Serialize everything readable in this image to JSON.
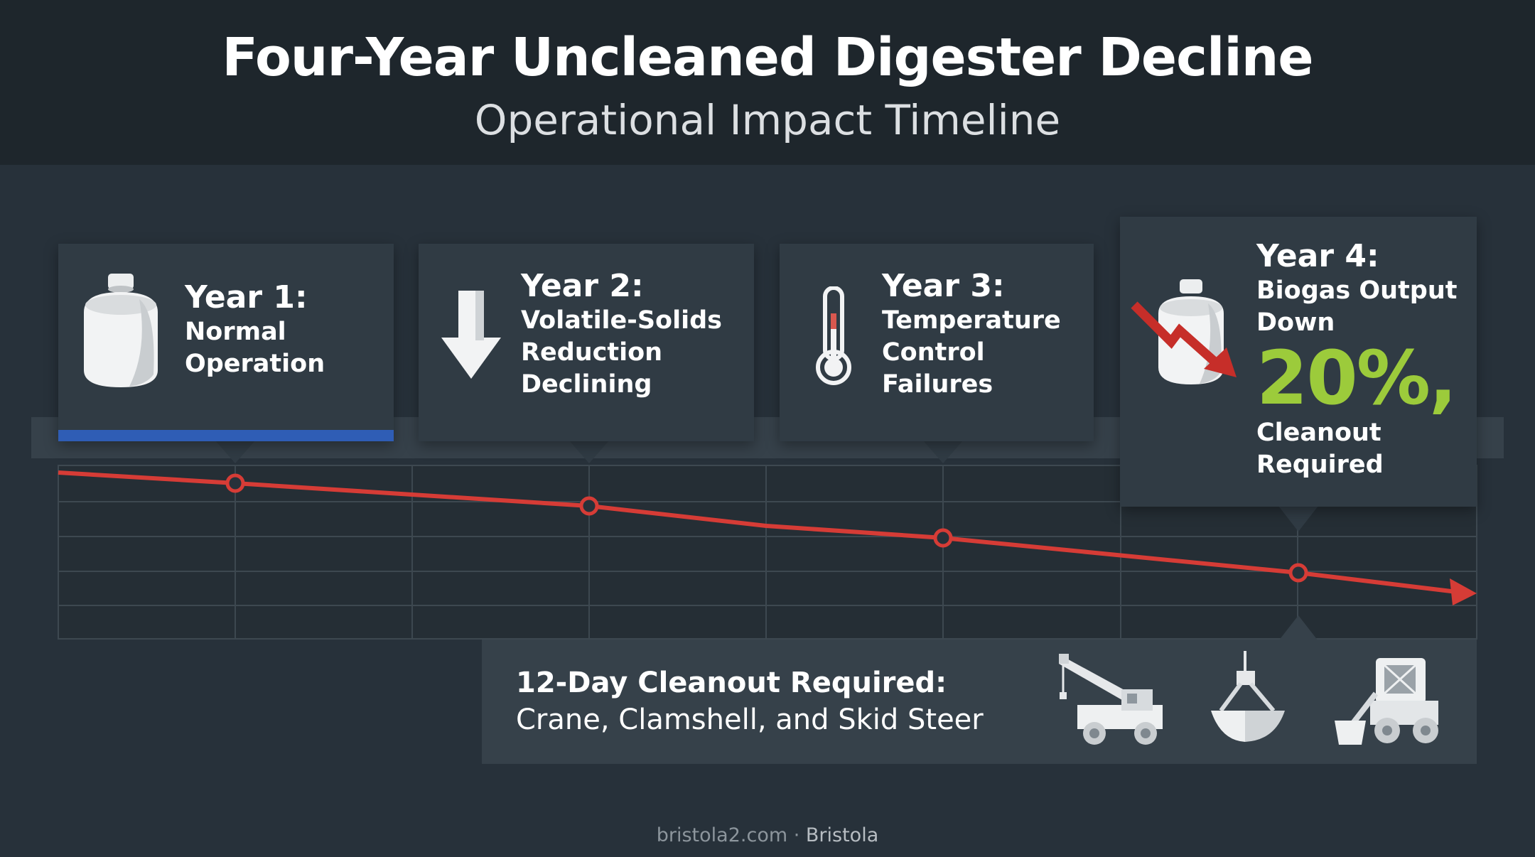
{
  "header": {
    "title": "Four-Year Uncleaned Digester Decline",
    "subtitle": "Operational Impact Timeline"
  },
  "stages": [
    {
      "year": "Year 1:",
      "lines": [
        "Normal",
        "Operation"
      ],
      "icon": "digester-tank-icon"
    },
    {
      "year": "Year 2:",
      "lines": [
        "Volatile-Solids",
        "Reduction",
        "Declining"
      ],
      "icon": "down-arrow-icon"
    },
    {
      "year": "Year 3:",
      "lines": [
        "Temperature",
        "Control",
        "Failures"
      ],
      "icon": "thermometer-icon"
    },
    {
      "year": "Year 4:",
      "lines": [
        "Biogas Output",
        "Down"
      ],
      "highlight": "20%,",
      "lines_after": [
        "Cleanout",
        "Required"
      ],
      "icon": "declining-tank-icon"
    }
  ],
  "cleanout": {
    "heading": "12-Day Cleanout Required:",
    "equipment": "Crane, Clamshell, and Skid Steer",
    "icons": [
      "crane-icon",
      "clamshell-bucket-icon",
      "skid-steer-icon"
    ]
  },
  "footer": {
    "site": "bristola2.com",
    "separator": " · ",
    "brand": "Bristola"
  },
  "colors": {
    "background": "#27313a",
    "header": "#1e262c",
    "card": "#303b44",
    "trend_line": "#d63c36",
    "highlight": "#9ccb3b",
    "year1_accent": "#2f5db5"
  }
}
